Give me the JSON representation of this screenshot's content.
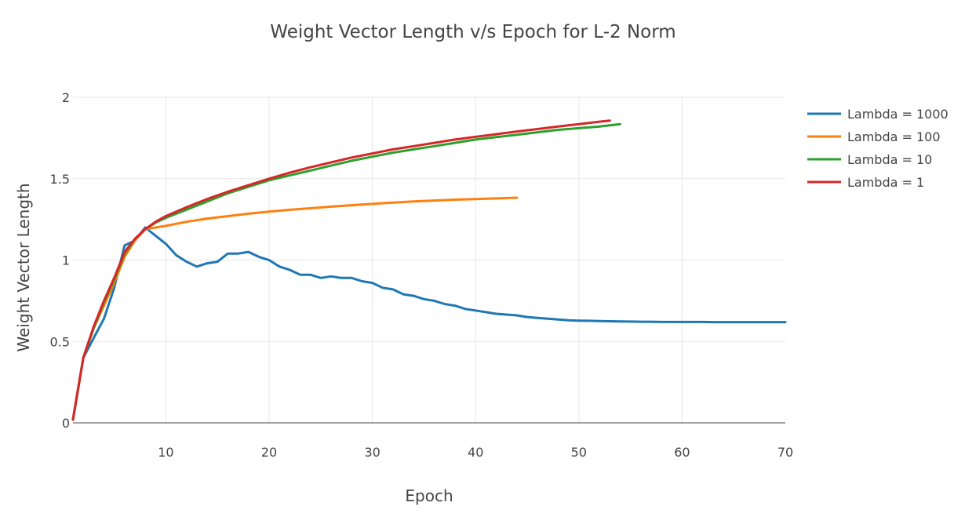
{
  "chart_data": {
    "type": "line",
    "title": "Weight Vector Length v/s Epoch for L-2 Norm",
    "xlabel": "Epoch",
    "ylabel": "Weight Vector Length",
    "xlim": [
      1,
      70
    ],
    "ylim": [
      0,
      2
    ],
    "xticks": [
      10,
      20,
      30,
      40,
      50,
      60,
      70
    ],
    "xtick_labels": [
      "10",
      "20",
      "30",
      "40",
      "50",
      "60",
      "70"
    ],
    "yticks": [
      0,
      0.5,
      1,
      1.5,
      2
    ],
    "ytick_labels": [
      "0",
      "0.5",
      "1",
      "1.5",
      "2"
    ],
    "grid": true,
    "legend_position": "top-right",
    "series": [
      {
        "name": "Lambda = 1000",
        "color": "#1f77b4",
        "x": [
          1,
          2,
          3,
          4,
          5,
          6,
          7,
          8,
          9,
          10,
          11,
          12,
          13,
          14,
          15,
          16,
          17,
          18,
          19,
          20,
          21,
          22,
          23,
          24,
          25,
          26,
          27,
          28,
          29,
          30,
          31,
          32,
          33,
          34,
          35,
          36,
          37,
          38,
          39,
          40,
          41,
          42,
          43,
          44,
          45,
          46,
          47,
          48,
          49,
          50,
          51,
          52,
          53,
          54,
          55,
          56,
          57,
          58,
          59,
          60,
          61,
          62,
          63,
          64,
          65,
          66,
          67,
          68,
          69,
          70
        ],
        "y": [
          0.02,
          0.4,
          0.52,
          0.64,
          0.83,
          1.09,
          1.12,
          1.2,
          1.15,
          1.1,
          1.03,
          0.99,
          0.96,
          0.98,
          0.99,
          1.04,
          1.04,
          1.05,
          1.02,
          1.0,
          0.96,
          0.94,
          0.91,
          0.91,
          0.89,
          0.9,
          0.89,
          0.89,
          0.87,
          0.86,
          0.83,
          0.82,
          0.79,
          0.78,
          0.76,
          0.75,
          0.73,
          0.72,
          0.7,
          0.69,
          0.68,
          0.67,
          0.665,
          0.66,
          0.65,
          0.645,
          0.64,
          0.635,
          0.63,
          0.628,
          0.627,
          0.625,
          0.624,
          0.623,
          0.622,
          0.621,
          0.621,
          0.62,
          0.62,
          0.62,
          0.62,
          0.62,
          0.619,
          0.619,
          0.619,
          0.619,
          0.619,
          0.619,
          0.619,
          0.619
        ]
      },
      {
        "name": "Lambda = 100",
        "color": "#ff7f0e",
        "x": [
          1,
          2,
          3,
          4,
          5,
          6,
          7,
          8,
          9,
          10,
          12,
          14,
          16,
          18,
          20,
          22,
          24,
          26,
          28,
          30,
          32,
          34,
          36,
          38,
          40,
          42,
          44
        ],
        "y": [
          0.02,
          0.4,
          0.58,
          0.72,
          0.86,
          1.02,
          1.12,
          1.19,
          1.2,
          1.21,
          1.235,
          1.255,
          1.27,
          1.285,
          1.298,
          1.309,
          1.318,
          1.328,
          1.337,
          1.345,
          1.353,
          1.36,
          1.366,
          1.371,
          1.375,
          1.379,
          1.383
        ]
      },
      {
        "name": "Lambda = 10",
        "color": "#2ca02c",
        "x": [
          1,
          2,
          3,
          4,
          5,
          6,
          7,
          8,
          9,
          10,
          12,
          14,
          16,
          18,
          20,
          22,
          24,
          26,
          28,
          30,
          32,
          34,
          36,
          38,
          40,
          42,
          44,
          46,
          48,
          50,
          52,
          54
        ],
        "y": [
          0.02,
          0.4,
          0.58,
          0.74,
          0.88,
          1.04,
          1.13,
          1.19,
          1.23,
          1.26,
          1.31,
          1.36,
          1.41,
          1.45,
          1.49,
          1.52,
          1.55,
          1.58,
          1.61,
          1.635,
          1.66,
          1.68,
          1.7,
          1.72,
          1.74,
          1.755,
          1.77,
          1.785,
          1.8,
          1.81,
          1.82,
          1.835
        ]
      },
      {
        "name": "Lambda = 1",
        "color": "#d62728",
        "x": [
          1,
          2,
          3,
          4,
          5,
          6,
          7,
          8,
          9,
          10,
          12,
          14,
          16,
          18,
          20,
          22,
          24,
          26,
          28,
          30,
          32,
          34,
          36,
          38,
          40,
          42,
          44,
          46,
          48,
          50,
          52,
          53
        ],
        "y": [
          0.02,
          0.4,
          0.59,
          0.75,
          0.89,
          1.05,
          1.13,
          1.19,
          1.235,
          1.27,
          1.325,
          1.375,
          1.42,
          1.46,
          1.5,
          1.537,
          1.57,
          1.6,
          1.63,
          1.655,
          1.68,
          1.7,
          1.72,
          1.74,
          1.757,
          1.773,
          1.79,
          1.805,
          1.82,
          1.835,
          1.85,
          1.857
        ]
      }
    ]
  }
}
